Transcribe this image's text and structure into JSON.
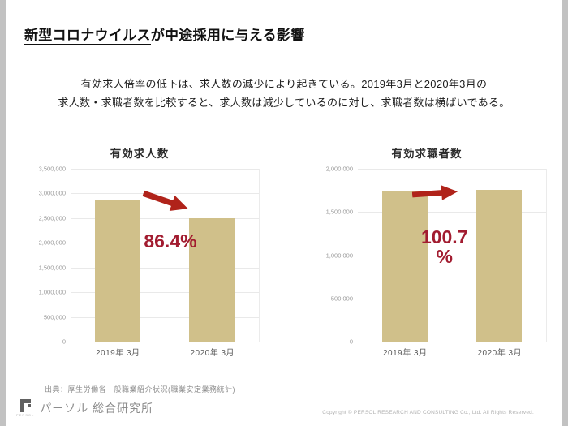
{
  "slide": {
    "title": {
      "underlined": "新型コロナウイルス",
      "rest": "が中途採用に与える影響"
    },
    "intro_lines": [
      "有効求人倍率の低下は、求人数の減少により起きている。2019年3月と2020年3月の",
      "求人数・求職者数を比較すると、求人数は減少しているのに対し、求職者数は横ばいである。"
    ],
    "source": "出典：厚生労働省一般職業紹介状況(職業安定業務統計)",
    "footer": {
      "logo_text": "PERSOL",
      "brand": "パーソル 総合研究所",
      "copyright": "Copyright © PERSOL RESEARCH AND CONSULTING Co., Ltd. All Rights Reserved."
    }
  },
  "colors": {
    "bar": "#d0c08a",
    "arrow": "#b0231a",
    "percent_text": "#a21c30",
    "gridline": "#e9e9e9"
  },
  "chart_data": [
    {
      "type": "bar",
      "title": "有効求人数",
      "categories": [
        "2019年 3月",
        "2020年 3月"
      ],
      "values": [
        2880000,
        2490000
      ],
      "ylim": [
        0,
        3500000
      ],
      "ytick": 500000,
      "grid": true,
      "legend": false,
      "annotation": {
        "label_lines": [
          "86.4%"
        ],
        "arrow_direction": "down-right"
      }
    },
    {
      "type": "bar",
      "title": "有効求職者数",
      "categories": [
        "2019年 3月",
        "2020年 3月"
      ],
      "values": [
        1740000,
        1752000
      ],
      "ylim": [
        0,
        2000000
      ],
      "ytick": 500000,
      "grid": true,
      "legend": false,
      "annotation": {
        "label_lines": [
          "100.7",
          "%"
        ],
        "arrow_direction": "right"
      }
    }
  ]
}
